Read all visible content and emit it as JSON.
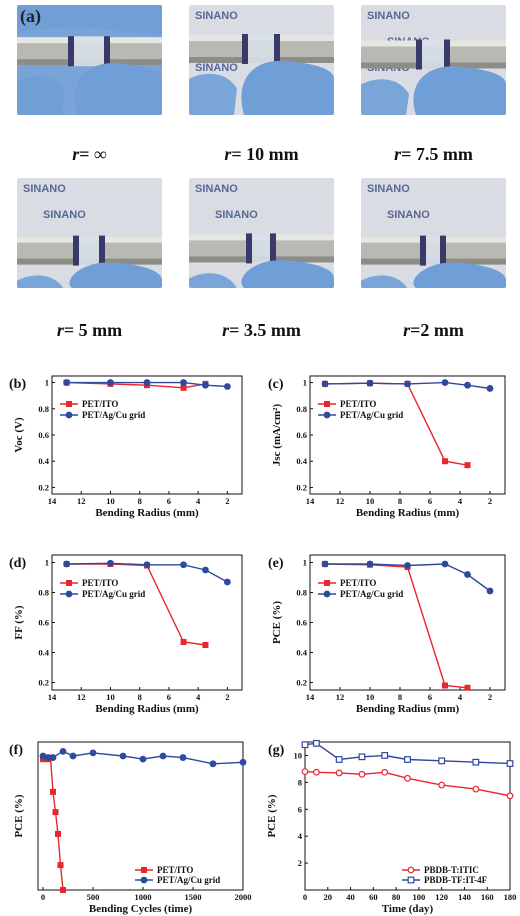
{
  "figure_label_a": "(a)",
  "photos": [
    {
      "var": "r",
      "rest": "= ∞",
      "brand": ""
    },
    {
      "var": "r",
      "rest": "= 10 mm",
      "brand": "SINANO"
    },
    {
      "var": "r",
      "rest": "= 7.5 mm",
      "brand": "SINANO"
    },
    {
      "var": "r",
      "rest": "= 5 mm",
      "brand": "SINANO"
    },
    {
      "var": "r",
      "rest": "= 3.5 mm",
      "brand": "SINANO"
    },
    {
      "var": "r",
      "rest": "=2 mm",
      "brand": "SINANO"
    }
  ],
  "colors": {
    "red": "#e8262d",
    "blue": "#2e4a9c",
    "glove": "#6f9fd6",
    "rod": "#b9b9b4"
  },
  "chart_data": [
    {
      "id": "b",
      "label": "(b)",
      "type": "line",
      "xlabel": "Bending Radius (mm)",
      "ylabel": "Voc (V)",
      "xlim": [
        14,
        1
      ],
      "ylim": [
        0.15,
        1.05
      ],
      "xticks": [
        14,
        12,
        10,
        8,
        6,
        4,
        2
      ],
      "yticks": [
        0.2,
        0.4,
        0.6,
        0.8,
        1.0
      ],
      "legend_position": "upper-left",
      "series": [
        {
          "name": "PET/ITO",
          "color": "#e8262d",
          "marker": "square",
          "x": [
            13,
            10,
            7.5,
            5,
            3.5
          ],
          "y": [
            1.0,
            0.99,
            0.98,
            0.96,
            0.99
          ]
        },
        {
          "name": "PET/Ag/Cu grid",
          "color": "#2e4a9c",
          "marker": "circle",
          "x": [
            13,
            10,
            7.5,
            5,
            3.5,
            2
          ],
          "y": [
            1.0,
            1.0,
            1.0,
            1.0,
            0.98,
            0.97
          ]
        }
      ]
    },
    {
      "id": "c",
      "label": "(c)",
      "type": "line",
      "xlabel": "Bending Radius (mm)",
      "ylabel": "Jsc (mA/cm²)",
      "xlim": [
        14,
        1
      ],
      "ylim": [
        0.15,
        1.05
      ],
      "xticks": [
        14,
        12,
        10,
        8,
        6,
        4,
        2
      ],
      "yticks": [
        0.2,
        0.4,
        0.6,
        0.8,
        1.0
      ],
      "legend_position": "upper-left",
      "series": [
        {
          "name": "PET/ITO",
          "color": "#e8262d",
          "marker": "square",
          "x": [
            13,
            10,
            7.5,
            5,
            3.5
          ],
          "y": [
            0.99,
            0.995,
            0.99,
            0.4,
            0.37
          ]
        },
        {
          "name": "PET/Ag/Cu grid",
          "color": "#2e4a9c",
          "marker": "circle",
          "x": [
            13,
            10,
            7.5,
            5,
            3.5,
            2
          ],
          "y": [
            0.99,
            0.995,
            0.99,
            1.0,
            0.98,
            0.955
          ]
        }
      ]
    },
    {
      "id": "d",
      "label": "(d)",
      "type": "line",
      "xlabel": "Bending Radius (mm)",
      "ylabel": "FF (%)",
      "xlim": [
        14,
        1
      ],
      "ylim": [
        0.15,
        1.05
      ],
      "xticks": [
        14,
        12,
        10,
        8,
        6,
        4,
        2
      ],
      "yticks": [
        0.2,
        0.4,
        0.6,
        0.8,
        1.0
      ],
      "legend_position": "upper-left",
      "series": [
        {
          "name": "PET/ITO",
          "color": "#e8262d",
          "marker": "square",
          "x": [
            13,
            10,
            7.5,
            5,
            3.5
          ],
          "y": [
            0.99,
            0.99,
            0.98,
            0.47,
            0.45
          ]
        },
        {
          "name": "PET/Ag/Cu grid",
          "color": "#2e4a9c",
          "marker": "circle",
          "x": [
            13,
            10,
            7.5,
            5,
            3.5,
            2
          ],
          "y": [
            0.99,
            0.995,
            0.985,
            0.985,
            0.95,
            0.87
          ]
        }
      ]
    },
    {
      "id": "e",
      "label": "(e)",
      "type": "line",
      "xlabel": "Bending  Radius (mm)",
      "ylabel": "PCE (%)",
      "xlim": [
        14,
        1
      ],
      "ylim": [
        0.15,
        1.05
      ],
      "xticks": [
        14,
        12,
        10,
        8,
        6,
        4,
        2
      ],
      "yticks": [
        0.2,
        0.4,
        0.6,
        0.8,
        1.0
      ],
      "legend_position": "upper-left",
      "series": [
        {
          "name": "PET/ITO",
          "color": "#e8262d",
          "marker": "square",
          "x": [
            13,
            10,
            7.5,
            5,
            3.5
          ],
          "y": [
            0.99,
            0.985,
            0.97,
            0.18,
            0.165
          ]
        },
        {
          "name": "PET/Ag/Cu grid",
          "color": "#2e4a9c",
          "marker": "circle",
          "x": [
            13,
            10,
            7.5,
            5,
            3.5,
            2
          ],
          "y": [
            0.99,
            0.99,
            0.98,
            0.99,
            0.92,
            0.81
          ]
        }
      ]
    },
    {
      "id": "f",
      "label": "(f)",
      "type": "line",
      "xlabel": "Bending Cycles (time)",
      "ylabel": "PCE (%)",
      "xlim": [
        -50,
        2000
      ],
      "ylim": [
        0,
        9.5
      ],
      "xticks": [
        0,
        500,
        1000,
        1500,
        2000
      ],
      "yticks": [],
      "legend_position": "lower-right",
      "series": [
        {
          "name": "PET/ITO",
          "color": "#e8262d",
          "marker": "square",
          "x": [
            0,
            25,
            50,
            75,
            100,
            125,
            150,
            175,
            200
          ],
          "y": [
            8.4,
            8.4,
            8.4,
            8.5,
            6.3,
            5.0,
            3.6,
            1.6,
            0.0
          ]
        },
        {
          "name": "PET/Ag/Cu grid",
          "color": "#2e4a9c",
          "marker": "circle",
          "x": [
            0,
            50,
            100,
            200,
            300,
            500,
            800,
            1000,
            1200,
            1400,
            1700,
            2000
          ],
          "y": [
            8.6,
            8.5,
            8.5,
            8.9,
            8.6,
            8.8,
            8.6,
            8.4,
            8.6,
            8.5,
            8.1,
            8.2
          ]
        }
      ]
    },
    {
      "id": "g",
      "label": "(g)",
      "type": "line",
      "xlabel": "Time (day)",
      "ylabel": "PCE (%)",
      "xlim": [
        0,
        180
      ],
      "ylim": [
        0,
        11
      ],
      "xticks": [
        0,
        20,
        40,
        60,
        80,
        100,
        120,
        140,
        160,
        180
      ],
      "yticks": [
        2,
        4,
        6,
        8,
        10
      ],
      "legend_position": "lower-right",
      "series": [
        {
          "name": "PBDB-T:ITIC",
          "color": "#e8262d",
          "marker": "open-circle",
          "x": [
            0,
            10,
            30,
            50,
            70,
            90,
            120,
            150,
            180
          ],
          "y": [
            8.8,
            8.75,
            8.7,
            8.6,
            8.75,
            8.3,
            7.8,
            7.5,
            7.0
          ]
        },
        {
          "name": "PBDB-TF:IT-4F",
          "color": "#2e4a9c",
          "marker": "open-square",
          "x": [
            0,
            10,
            30,
            50,
            70,
            90,
            120,
            150,
            180
          ],
          "y": [
            10.8,
            10.9,
            9.7,
            9.9,
            10.0,
            9.7,
            9.6,
            9.5,
            9.4
          ]
        }
      ]
    }
  ]
}
